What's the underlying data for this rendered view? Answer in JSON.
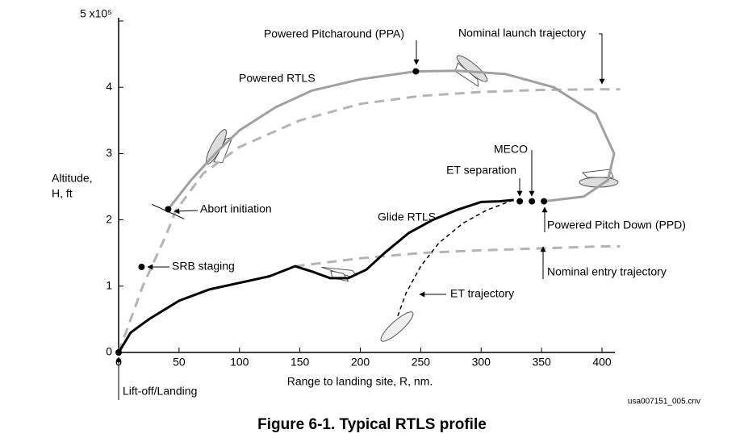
{
  "chart_data": {
    "type": "line",
    "caption": "Figure 6-1.  Typical RTLS profile",
    "file_id": "usa007151_005.cnv",
    "xlabel": "Range to landing site, R, nm.",
    "ylabel": [
      "Altitude,",
      "H, ft"
    ],
    "xlim": [
      0,
      400
    ],
    "ylim": [
      0,
      5
    ],
    "xticks": [
      0,
      50,
      100,
      150,
      200,
      250,
      300,
      350,
      400
    ],
    "yticks": [
      0,
      1,
      2,
      3,
      4,
      {
        "value": 5,
        "label": "5 x10⁵"
      }
    ],
    "grid": false,
    "series": [
      {
        "name": "Nominal launch trajectory",
        "color": "#b4b4b4",
        "dashed": true,
        "x": [
          0,
          20,
          40,
          47,
          70,
          100,
          150,
          200,
          250,
          300,
          350,
          400,
          415
        ],
        "values": [
          0,
          1.0,
          1.8,
          2.13,
          2.7,
          3.1,
          3.5,
          3.75,
          3.87,
          3.93,
          3.96,
          3.97,
          3.97
        ]
      },
      {
        "name": "Powered RTLS",
        "color": "#a0a0a0",
        "dashed": false,
        "x": [
          41,
          60,
          80,
          100,
          130,
          160,
          200,
          246,
          280,
          320,
          360,
          395,
          410,
          405,
          385,
          352
        ],
        "values": [
          2.16,
          2.6,
          3.0,
          3.35,
          3.7,
          3.95,
          4.12,
          4.24,
          4.25,
          4.2,
          4.0,
          3.6,
          3.0,
          2.6,
          2.35,
          2.28
        ]
      },
      {
        "name": "Nominal entry trajectory",
        "color": "#b4b4b4",
        "dashed": true,
        "x": [
          146,
          200,
          250,
          300,
          350,
          400,
          415
        ],
        "values": [
          1.3,
          1.42,
          1.5,
          1.54,
          1.57,
          1.6,
          1.6
        ]
      },
      {
        "name": "Glide RTLS",
        "color": "#000000",
        "dashed": false,
        "x": [
          0,
          10,
          25,
          50,
          75,
          100,
          125,
          146,
          160,
          175,
          190,
          205,
          220,
          240,
          260,
          280,
          300,
          315,
          327
        ],
        "values": [
          0,
          0.3,
          0.5,
          0.78,
          0.95,
          1.05,
          1.15,
          1.3,
          1.22,
          1.12,
          1.12,
          1.25,
          1.5,
          1.8,
          2.0,
          2.15,
          2.27,
          2.28,
          2.3
        ]
      },
      {
        "name": "ET trajectory",
        "color": "#000000",
        "dashed": true,
        "x": [
          231,
          238,
          250,
          265,
          285,
          305,
          327
        ],
        "values": [
          0.55,
          0.9,
          1.3,
          1.65,
          1.95,
          2.15,
          2.3
        ]
      }
    ],
    "events": [
      {
        "label": "Lift-off/Landing",
        "x": 0,
        "y": 0
      },
      {
        "label": "SRB staging",
        "x": 19,
        "y": 1.29
      },
      {
        "label": "Abort initiation",
        "x": 41,
        "y": 2.16
      },
      {
        "label": "Powered Pitcharound (PPA)",
        "x": 246,
        "y": 4.24
      },
      {
        "label": "ET separation",
        "x": 332,
        "y": 2.28
      },
      {
        "label": "MECO",
        "x": 342,
        "y": 2.28
      },
      {
        "label": "Powered Pitch Down (PPD)",
        "x": 352,
        "y": 2.28
      }
    ]
  }
}
